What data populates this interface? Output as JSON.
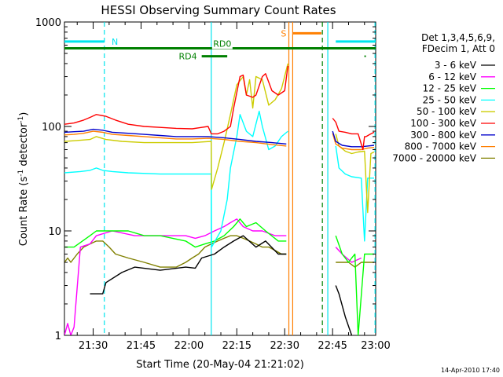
{
  "chart_data": {
    "type": "line",
    "title": "HESSI Observing Summary Count Rates",
    "xlabel": "Start Time (20-May-04 21:21:02)",
    "ylabel_pre": "Count Rate (s",
    "ylabel_sup1": "-1",
    "ylabel_mid": " detector",
    "ylabel_sup2": "-1",
    "ylabel_post": ")",
    "yscale": "log",
    "ylim": [
      1,
      1000
    ],
    "xlim_min": [
      0,
      97.5
    ],
    "x_ticks": [
      {
        "m": 9,
        "label": "21:30"
      },
      {
        "m": 24,
        "label": "21:45"
      },
      {
        "m": 39,
        "label": "22:00"
      },
      {
        "m": 54,
        "label": "22:15"
      },
      {
        "m": 69,
        "label": "22:30"
      },
      {
        "m": 84,
        "label": "22:45"
      },
      {
        "m": 99,
        "label": "23:00"
      }
    ],
    "y_ticks": [
      {
        "v": 1,
        "label": "1"
      },
      {
        "v": 10,
        "label": "10"
      },
      {
        "v": 100,
        "label": "100"
      },
      {
        "v": 1000,
        "label": "1000"
      }
    ],
    "legend": {
      "header": [
        "Det 1,3,4,5,6,9,",
        "FDecim 1, Att 0"
      ],
      "placement": "right"
    },
    "timestamp": "14-Apr-2010 17:40",
    "series": [
      {
        "name": "3 - 6 keV",
        "color": "#000000",
        "x": [
          0,
          7,
          8,
          12,
          13,
          18,
          22,
          30,
          38,
          41,
          43,
          47,
          50,
          53,
          56,
          60,
          63,
          67,
          69.5,
          70
        ],
        "y": [
          null,
          null,
          2.5,
          2.5,
          3.2,
          4,
          4.5,
          4.2,
          4.5,
          4.4,
          5.5,
          6,
          7,
          8,
          9,
          7,
          8,
          6,
          6,
          null
        ],
        "x2": [
          85,
          86,
          88,
          90
        ],
        "y2": [
          3,
          2.5,
          1.5,
          1
        ]
      },
      {
        "name": "6 - 12 keV",
        "color": "#ff00ff",
        "x": [
          0,
          1,
          2,
          3,
          5,
          8,
          10,
          15,
          22,
          30,
          38,
          41,
          44,
          47,
          50,
          52,
          54,
          56,
          59,
          62,
          66,
          69.5,
          70
        ],
        "y": [
          1,
          1.3,
          1,
          1.2,
          7,
          7.5,
          9,
          10,
          9,
          9,
          9,
          8.5,
          9,
          10,
          11,
          12,
          13,
          11,
          10,
          10,
          9,
          9,
          null
        ],
        "x2": [
          85,
          87,
          90,
          93
        ],
        "y2": [
          7,
          6,
          5,
          5.5
        ]
      },
      {
        "name": "12 - 25 keV",
        "color": "#00ff00",
        "x": [
          0,
          3,
          8,
          10,
          14,
          20,
          25,
          30,
          38,
          41,
          44,
          47,
          50,
          53,
          55,
          57,
          60,
          63,
          67,
          69.5,
          70
        ],
        "y": [
          7,
          7,
          9,
          10,
          10,
          10,
          9,
          9,
          8,
          7,
          7.5,
          8,
          9,
          11,
          13,
          11,
          12,
          10,
          8,
          8,
          null
        ],
        "x2": [
          85,
          87,
          89,
          90,
          91,
          92,
          94,
          97
        ],
        "y2": [
          9,
          6,
          5,
          5.5,
          6,
          1,
          6,
          6
        ]
      },
      {
        "name": "25 - 50 keV",
        "color": "#00ffff",
        "x": [
          0,
          5,
          8,
          10,
          12,
          15,
          20,
          30,
          40,
          46,
          46.1,
          49,
          51,
          52,
          54,
          55,
          57,
          59,
          61,
          62,
          64,
          66,
          68,
          70
        ],
        "y": [
          36,
          37,
          38,
          40,
          38,
          37,
          36,
          35,
          35,
          35,
          7,
          10,
          20,
          40,
          80,
          130,
          90,
          80,
          140,
          100,
          60,
          65,
          80,
          90
        ],
        "x2": [
          85,
          86,
          88,
          90,
          93,
          94,
          95,
          97
        ],
        "y2": [
          65,
          40,
          35,
          33,
          32,
          8,
          32,
          32
        ]
      },
      {
        "name": "50 - 100 keV",
        "color": "#cccc00",
        "x": [
          0,
          3,
          8,
          10,
          13,
          18,
          25,
          32,
          40,
          46,
          46.1,
          48,
          50,
          52,
          54,
          56,
          57,
          58,
          59,
          60,
          62,
          64,
          66,
          68,
          70
        ],
        "y": [
          72,
          73,
          75,
          80,
          75,
          72,
          70,
          70,
          70,
          72,
          25,
          40,
          70,
          130,
          250,
          300,
          200,
          280,
          150,
          300,
          280,
          160,
          180,
          230,
          400
        ],
        "x2": [
          85,
          86,
          88,
          90,
          92,
          94,
          95,
          96,
          97
        ],
        "y2": [
          85,
          65,
          58,
          55,
          57,
          58,
          15,
          55,
          57
        ]
      },
      {
        "name": "100 - 300 keV",
        "color": "#ff0000",
        "x": [
          0,
          3,
          6,
          8,
          10,
          13,
          16,
          20,
          25,
          30,
          35,
          40,
          45,
          46,
          48,
          50,
          52,
          53,
          55,
          56,
          57,
          59,
          60,
          62,
          63,
          65,
          67,
          69,
          70
        ],
        "y": [
          105,
          108,
          115,
          122,
          130,
          125,
          115,
          105,
          100,
          98,
          96,
          95,
          100,
          85,
          85,
          90,
          100,
          150,
          300,
          310,
          200,
          190,
          200,
          300,
          320,
          220,
          200,
          220,
          380
        ],
        "x2": [
          84,
          85,
          86,
          88,
          90,
          92,
          93.5,
          94,
          94.5,
          96,
          97
        ],
        "y2": [
          120,
          110,
          90,
          88,
          85,
          85,
          60,
          80,
          80,
          85,
          88
        ]
      },
      {
        "name": "300 - 800 keV",
        "color": "#0000cc",
        "x": [
          0,
          3,
          6,
          9,
          12,
          15,
          20,
          25,
          30,
          35,
          40,
          45,
          50,
          55,
          60,
          65,
          69.5
        ],
        "y": [
          88,
          89,
          90,
          94,
          92,
          88,
          86,
          84,
          82,
          80,
          80,
          80,
          78,
          75,
          72,
          70,
          68
        ],
        "x2": [
          84,
          85,
          87,
          90,
          93,
          95,
          97
        ],
        "y2": [
          90,
          72,
          66,
          64,
          64,
          65,
          66
        ]
      },
      {
        "name": "800 - 7000 keV",
        "color": "#ff7f00",
        "x": [
          0,
          3,
          6,
          9,
          12,
          15,
          20,
          25,
          30,
          35,
          40,
          45,
          50,
          55,
          60,
          65,
          69.5
        ],
        "y": [
          83,
          84,
          86,
          90,
          88,
          84,
          82,
          80,
          78,
          76,
          76,
          77,
          75,
          72,
          70,
          67,
          65
        ],
        "x2": [
          84,
          85,
          87,
          90,
          93,
          95,
          97
        ],
        "y2": [
          86,
          68,
          62,
          60,
          60,
          62,
          63
        ]
      },
      {
        "name": "7000 - 20000 keV",
        "color": "#808000",
        "x": [
          0,
          1,
          2,
          4,
          6,
          8,
          10,
          12,
          14,
          16,
          20,
          25,
          30,
          35,
          38,
          40,
          42,
          44,
          46,
          48,
          50,
          52,
          54,
          56,
          58,
          60,
          62,
          64,
          66,
          68,
          69.5,
          70
        ],
        "y": [
          5,
          5.5,
          5,
          6,
          7,
          7.5,
          8,
          8,
          7,
          6,
          5.5,
          5,
          4.5,
          4.5,
          5,
          5.5,
          6,
          7,
          7.5,
          8,
          8.5,
          9,
          9,
          8.5,
          8,
          7.5,
          7,
          7,
          6.5,
          6,
          6,
          null
        ],
        "x2": [
          85,
          87,
          89,
          91,
          93,
          95,
          97
        ],
        "y2": [
          5,
          5,
          5,
          4.5,
          5,
          5,
          5
        ]
      }
    ],
    "annotations": {
      "bars": [
        {
          "label": "N",
          "color": "#00e5ee",
          "segments": [
            [
              0,
              12.5
            ],
            [
              85,
              97.5
            ]
          ],
          "y": 650
        },
        {
          "label": "RD0",
          "color": "#008000",
          "segments": [
            [
              0,
              97.5
            ]
          ],
          "y": 560
        },
        {
          "label": "RD4",
          "color": "#008000",
          "segments": [
            [
              43,
              51
            ]
          ],
          "y": 470
        },
        {
          "label": "S",
          "color": "#ff7f00",
          "segments": [
            [
              71.5,
              80.5
            ]
          ],
          "y": 780
        }
      ],
      "vlines": [
        {
          "m": 12.5,
          "color": "#00e5ee",
          "dashed": true
        },
        {
          "m": 46,
          "color": "#00e5ee",
          "dashed": false
        },
        {
          "m": 70.3,
          "color": "#ff7f00",
          "dashed": false
        },
        {
          "m": 71.5,
          "color": "#ff7f00",
          "dashed": false
        },
        {
          "m": 80.8,
          "color": "#008000",
          "dashed": true
        },
        {
          "m": 82.5,
          "color": "#00e5ee",
          "dashed": false
        },
        {
          "m": 97.3,
          "color": "#00e5ee",
          "dashed": true
        }
      ]
    }
  }
}
